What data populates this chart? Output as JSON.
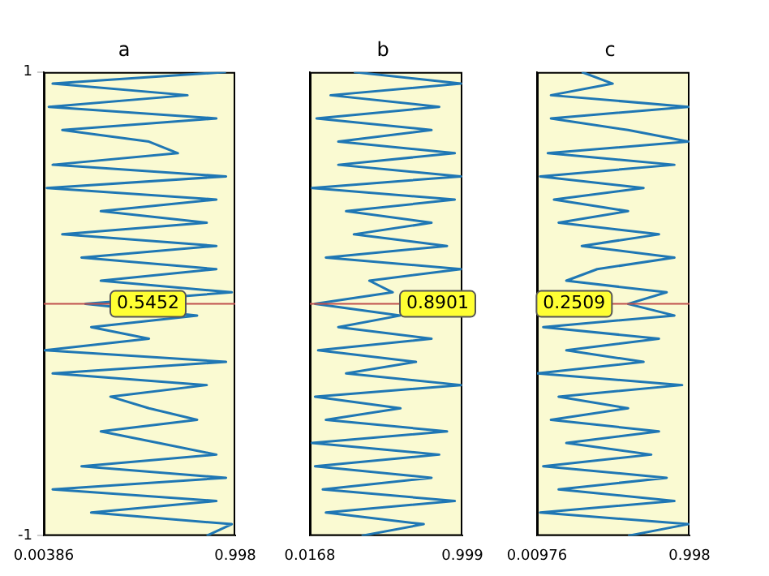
{
  "chart_data": [
    {
      "type": "line",
      "title": "a",
      "color": "#1f77b4",
      "xlim": [
        0.00386,
        0.998
      ],
      "xticks": [
        0.00386,
        0.998
      ],
      "ylim": [
        -1,
        1
      ],
      "yticks": [
        -1,
        1
      ],
      "x": [
        0.95,
        0.05,
        0.75,
        0.03,
        0.9,
        0.1,
        0.55,
        0.7,
        0.05,
        0.95,
        0.02,
        0.9,
        0.3,
        0.85,
        0.1,
        0.9,
        0.2,
        0.9,
        0.3,
        0.98,
        0.22,
        0.8,
        0.25,
        0.55,
        0.01,
        0.95,
        0.05,
        0.85,
        0.35,
        0.55,
        0.8,
        0.3,
        0.6,
        0.9,
        0.2,
        0.95,
        0.05,
        0.9,
        0.25,
        0.98,
        0.85
      ],
      "values": [
        1,
        0.95,
        0.9,
        0.85,
        0.8,
        0.75,
        0.7,
        0.65,
        0.6,
        0.55,
        0.5,
        0.45,
        0.4,
        0.35,
        0.3,
        0.25,
        0.2,
        0.15,
        0.1,
        0.05,
        0,
        -0.05,
        -0.1,
        -0.15,
        -0.2,
        -0.25,
        -0.3,
        -0.35,
        -0.4,
        -0.45,
        -0.5,
        -0.55,
        -0.6,
        -0.65,
        -0.7,
        -0.75,
        -0.8,
        -0.85,
        -0.9,
        -0.95,
        -1
      ],
      "ref_lines": [
        {
          "axis": "y",
          "value": 0,
          "color": "#c0504d"
        }
      ],
      "annotations": [
        {
          "text": "0.5452",
          "x": 0.5452,
          "y": 0
        }
      ]
    },
    {
      "type": "line",
      "title": "b",
      "color": "#1f77b4",
      "xlim": [
        0.0168,
        0.999
      ],
      "xticks": [
        0.0168,
        0.999
      ],
      "ylim": [
        -1,
        1
      ],
      "tick_labels": "x",
      "x": [
        0.3,
        0.99,
        0.15,
        0.85,
        0.06,
        0.8,
        0.2,
        0.95,
        0.2,
        0.99,
        0.03,
        0.95,
        0.25,
        0.8,
        0.3,
        0.9,
        0.12,
        0.99,
        0.4,
        0.55,
        0.05,
        0.6,
        0.2,
        0.8,
        0.07,
        0.7,
        0.25,
        0.99,
        0.05,
        0.6,
        0.12,
        0.9,
        0.03,
        0.85,
        0.05,
        0.8,
        0.1,
        0.95,
        0.12,
        0.75,
        0.35
      ],
      "values": [
        1,
        0.95,
        0.9,
        0.85,
        0.8,
        0.75,
        0.7,
        0.65,
        0.6,
        0.55,
        0.5,
        0.45,
        0.4,
        0.35,
        0.3,
        0.25,
        0.2,
        0.15,
        0.1,
        0.05,
        0,
        -0.05,
        -0.1,
        -0.15,
        -0.2,
        -0.25,
        -0.3,
        -0.35,
        -0.4,
        -0.45,
        -0.5,
        -0.55,
        -0.6,
        -0.65,
        -0.7,
        -0.75,
        -0.8,
        -0.85,
        -0.9,
        -0.95,
        -1
      ],
      "ref_lines": [
        {
          "axis": "y",
          "value": 0,
          "color": "#c0504d"
        }
      ],
      "annotations": [
        {
          "text": "0.8901",
          "x": 0.8901,
          "y": 0
        }
      ]
    },
    {
      "type": "line",
      "title": "c",
      "color": "#1f77b4",
      "xlim": [
        0.00976,
        0.998
      ],
      "xticks": [
        0.00976,
        0.998
      ],
      "ylim": [
        -1,
        1
      ],
      "tick_labels": "x",
      "x": [
        0.3,
        0.5,
        0.1,
        0.99,
        0.1,
        0.6,
        0.99,
        0.08,
        0.9,
        0.03,
        0.7,
        0.12,
        0.6,
        0.15,
        0.8,
        0.3,
        0.9,
        0.4,
        0.2,
        0.85,
        0.6,
        0.9,
        0.05,
        0.8,
        0.2,
        0.7,
        0.01,
        0.95,
        0.15,
        0.6,
        0.1,
        0.8,
        0.2,
        0.75,
        0.05,
        0.85,
        0.15,
        0.9,
        0.03,
        0.99,
        0.6
      ],
      "values": [
        1,
        0.95,
        0.9,
        0.85,
        0.8,
        0.75,
        0.7,
        0.65,
        0.6,
        0.55,
        0.5,
        0.45,
        0.4,
        0.35,
        0.3,
        0.25,
        0.2,
        0.15,
        0.1,
        0.05,
        0,
        -0.05,
        -0.1,
        -0.15,
        -0.2,
        -0.25,
        -0.3,
        -0.35,
        -0.4,
        -0.45,
        -0.5,
        -0.55,
        -0.6,
        -0.65,
        -0.7,
        -0.75,
        -0.8,
        -0.85,
        -0.9,
        -0.95,
        -1
      ],
      "ref_lines": [
        {
          "axis": "y",
          "value": 0,
          "color": "#c0504d"
        }
      ],
      "annotations": [
        {
          "text": "0.2509",
          "x": 0.2509,
          "y": 0
        }
      ]
    }
  ]
}
